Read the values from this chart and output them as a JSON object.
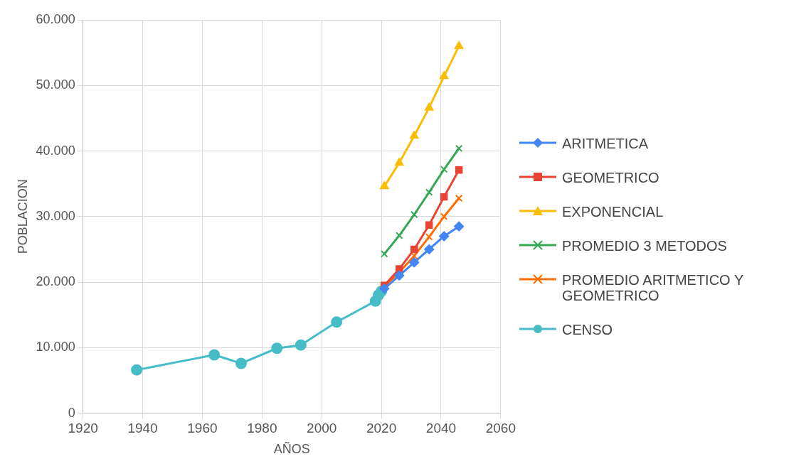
{
  "chart_data": {
    "type": "line",
    "xlabel": "AÑOS",
    "ylabel": "POBLACION",
    "xlim": [
      1920,
      2060
    ],
    "xticks": [
      1920,
      1940,
      1960,
      1980,
      2000,
      2020,
      2040,
      2060
    ],
    "ylim": [
      0,
      60000
    ],
    "yticks": [
      {
        "value": 0,
        "label": "0"
      },
      {
        "value": 10000,
        "label": "10.000"
      },
      {
        "value": 20000,
        "label": "20.000"
      },
      {
        "value": 30000,
        "label": "30.000"
      },
      {
        "value": 40000,
        "label": "40.000"
      },
      {
        "value": 50000,
        "label": "50.000"
      },
      {
        "value": 60000,
        "label": "60.000"
      }
    ],
    "grid": true,
    "legend": "right",
    "line_style": "solid",
    "series": [
      {
        "name": "ARITMETICA",
        "color": "#4285f4",
        "marker": "diamond",
        "x": [
          2021,
          2026,
          2031,
          2036,
          2041,
          2046
        ],
        "values": [
          19000,
          21000,
          23000,
          25000,
          27000,
          28500
        ]
      },
      {
        "name": "GEOMETRICO",
        "color": "#ea4335",
        "marker": "square",
        "x": [
          2021,
          2026,
          2031,
          2036,
          2041,
          2046
        ],
        "values": [
          19500,
          22000,
          25000,
          28700,
          33000,
          37100
        ]
      },
      {
        "name": "EXPONENCIAL",
        "color": "#fbbc04",
        "marker": "triangle",
        "x": [
          2021,
          2026,
          2031,
          2036,
          2041,
          2046
        ],
        "values": [
          34600,
          38200,
          42300,
          46600,
          51400,
          56000
        ]
      },
      {
        "name": "PROMEDIO 3 METODOS",
        "color": "#34a853",
        "marker": "cross",
        "x": [
          2021,
          2026,
          2031,
          2036,
          2041,
          2046
        ],
        "values": [
          24300,
          27100,
          30300,
          33700,
          37200,
          40400
        ]
      },
      {
        "name": "PROMEDIO ARITMETICO Y GEOMETRICO",
        "color": "#ff6d01",
        "marker": "cross",
        "x": [
          2021,
          2026,
          2031,
          2036,
          2041,
          2046
        ],
        "values": [
          19300,
          21500,
          24000,
          26900,
          30000,
          32800
        ]
      },
      {
        "name": "CENSO",
        "color": "#46bdc6",
        "marker": "circle",
        "x": [
          1938,
          1964,
          1973,
          1985,
          1993,
          2005,
          2018,
          2019,
          2020
        ],
        "values": [
          6600,
          8900,
          7600,
          9900,
          10400,
          13900,
          17100,
          18000,
          18600
        ]
      }
    ]
  }
}
